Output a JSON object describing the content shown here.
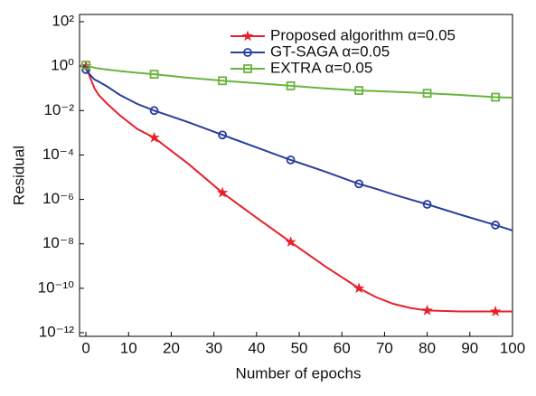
{
  "chart_data": {
    "type": "line",
    "xlabel": "Number of epochs",
    "ylabel": "Residual",
    "log_y": true,
    "legend": "upper right",
    "marker_every": 16,
    "x": [
      0,
      1,
      2,
      3,
      5,
      8,
      12,
      16,
      24,
      32,
      40,
      48,
      56,
      64,
      68,
      72,
      76,
      80,
      88,
      96,
      100
    ],
    "series": [
      {
        "name": "Proposed algorithm α=0.05",
        "color": "#e8202a",
        "marker": "star",
        "values": [
          1,
          0.3,
          0.1,
          0.05,
          0.02,
          0.006,
          0.0015,
          0.0006,
          4e-05,
          2e-06,
          1.5e-07,
          1.2e-08,
          1e-09,
          1e-10,
          4e-11,
          2e-11,
          1.3e-11,
          1e-11,
          9e-12,
          9e-12,
          9e-12
        ]
      },
      {
        "name": "GT-SAGA α=0.05",
        "color": "#2a3f9c",
        "marker": "circle",
        "values": [
          0.7,
          0.4,
          0.25,
          0.2,
          0.12,
          0.05,
          0.02,
          0.01,
          0.003,
          0.0008,
          0.00022,
          6e-05,
          1.8e-05,
          5e-06,
          3e-06,
          1.7e-06,
          1e-06,
          6e-07,
          2e-07,
          7e-08,
          4e-08
        ]
      },
      {
        "name": "EXTRA α=0.05",
        "color": "#6ab43e",
        "marker": "square",
        "values": [
          1.1,
          0.95,
          0.85,
          0.78,
          0.7,
          0.6,
          0.5,
          0.43,
          0.3,
          0.22,
          0.17,
          0.13,
          0.1,
          0.08,
          0.075,
          0.07,
          0.065,
          0.06,
          0.05,
          0.04,
          0.038
        ]
      }
    ],
    "xlim": [
      -1.5,
      100
    ],
    "xticks": [
      0,
      10,
      20,
      30,
      40,
      50,
      60,
      70,
      80,
      90,
      100
    ],
    "ylim": [
      1e-12,
      100
    ],
    "yticks": [
      {
        "value": 100,
        "label": "10²"
      },
      {
        "value": 1,
        "label": "10⁰"
      },
      {
        "value": 0.01,
        "label": "10⁻²"
      },
      {
        "value": 0.0001,
        "label": "10⁻⁴"
      },
      {
        "value": 1e-06,
        "label": "10⁻⁶"
      },
      {
        "value": 1e-08,
        "label": "10⁻⁸"
      },
      {
        "value": 1e-10,
        "label": "10⁻¹⁰"
      },
      {
        "value": 1e-12,
        "label": "10⁻¹²"
      }
    ]
  }
}
